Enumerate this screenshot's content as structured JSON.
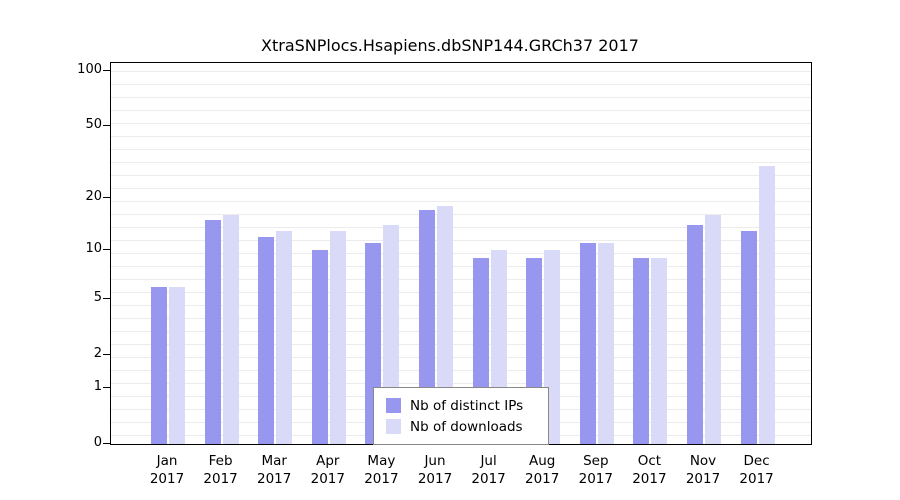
{
  "title": "XtraSNPlocs.Hsapiens.dbSNP144.GRCh37 2017",
  "chart_data": {
    "type": "bar",
    "categories": [
      "Jan",
      "Feb",
      "Mar",
      "Apr",
      "May",
      "Jun",
      "Jul",
      "Aug",
      "Sep",
      "Oct",
      "Nov",
      "Dec"
    ],
    "year": "2017",
    "series": [
      {
        "name": "Nb of distinct IPs",
        "color": "#9797ef",
        "values": [
          6,
          15,
          12,
          10,
          11,
          17,
          9,
          9,
          11,
          9,
          14,
          13
        ]
      },
      {
        "name": "Nb of downloads",
        "color": "#d9d9f8",
        "values": [
          6,
          16,
          13,
          13,
          14,
          18,
          10,
          10,
          11,
          9,
          16,
          30
        ]
      }
    ],
    "yticks": [
      0,
      1,
      2,
      5,
      10,
      20,
      50,
      100
    ],
    "ylim": [
      0,
      100
    ],
    "scale": "log1p",
    "grid": "horizontal-minor",
    "grid_color": "#ececec",
    "legend_position": "bottom-center-inside"
  }
}
